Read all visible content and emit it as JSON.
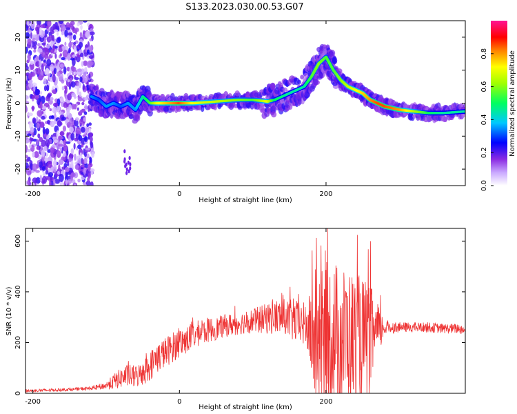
{
  "figure": {
    "title": "S133.2023.030.00.53.G07"
  },
  "chart_data": [
    {
      "type": "heatmap",
      "title": "S133.2023.030.00.53.G07",
      "xlabel": "Height of straight line (km)",
      "ylabel": "Frequency (Hz)",
      "xlim": [
        -210,
        390
      ],
      "ylim": [
        -25,
        25
      ],
      "x_ticks": [
        -200,
        0,
        200
      ],
      "y_ticks": [
        20,
        10,
        0,
        -10,
        -20
      ],
      "colorbar": {
        "label": "Normalized spectral amplitude",
        "range": [
          0,
          1
        ],
        "ticks": [
          0.0,
          0.2,
          0.4,
          0.6,
          0.8
        ],
        "colormap": [
          "#e8d8ff",
          "#8a2be2",
          "#0000ff",
          "#00ffff",
          "#00ff00",
          "#ffff00",
          "#ff8000",
          "#ff0000",
          "#ff00a0"
        ]
      },
      "ridge": {
        "x": [
          -120,
          -110,
          -100,
          -90,
          -80,
          -70,
          -60,
          -50,
          -40,
          -30,
          -20,
          0,
          20,
          50,
          80,
          100,
          120,
          130,
          150,
          170,
          180,
          190,
          200,
          210,
          220,
          230,
          240,
          250,
          260,
          270,
          280,
          300,
          320,
          340,
          360,
          390
        ],
        "y": [
          2,
          1,
          -1,
          0,
          -1,
          0,
          -2,
          2,
          0,
          0,
          0,
          0,
          0,
          0.5,
          1,
          1,
          0.5,
          1,
          3,
          5,
          8,
          12,
          14,
          10,
          7,
          5,
          4,
          3,
          1,
          0,
          -1,
          -2,
          -2.5,
          -3,
          -3,
          -2.5
        ],
        "amplitude": [
          0.35,
          0.3,
          0.35,
          0.35,
          0.3,
          0.35,
          0.35,
          0.45,
          0.55,
          0.7,
          0.75,
          0.85,
          0.7,
          0.65,
          0.6,
          0.55,
          0.7,
          0.5,
          0.45,
          0.45,
          0.55,
          0.6,
          0.55,
          0.55,
          0.6,
          0.65,
          0.7,
          0.75,
          0.8,
          0.85,
          0.85,
          0.8,
          0.65,
          0.5,
          0.45,
          0.45
        ]
      },
      "noise_region_x": [
        -210,
        -118
      ]
    },
    {
      "type": "line",
      "xlabel": "Height of straight line (km)",
      "ylabel": "SNR (10 * v/v)",
      "xlim": [
        -210,
        390
      ],
      "ylim": [
        0,
        650
      ],
      "x_ticks": [
        -200,
        0,
        200
      ],
      "y_ticks": [
        0,
        200,
        400,
        600
      ],
      "series": [
        {
          "color": "#ee3333",
          "x": [
            -210,
            -180,
            -150,
            -120,
            -100,
            -90,
            -80,
            -70,
            -60,
            -50,
            -40,
            -30,
            -20,
            -10,
            0,
            10,
            20,
            30,
            40,
            50,
            60,
            70,
            80,
            90,
            100,
            110,
            120,
            130,
            140,
            150,
            160,
            170,
            175,
            180,
            185,
            190,
            200,
            210,
            220,
            230,
            240,
            250,
            260,
            270,
            280,
            300,
            320,
            340,
            360,
            380,
            390
          ],
          "y": [
            10,
            12,
            15,
            20,
            30,
            45,
            60,
            70,
            65,
            80,
            110,
            140,
            160,
            180,
            200,
            210,
            230,
            240,
            250,
            255,
            265,
            270,
            275,
            280,
            285,
            290,
            295,
            300,
            300,
            290,
            280,
            270,
            260,
            230,
            210,
            200,
            220,
            230,
            220,
            215,
            210,
            205,
            215,
            240,
            260,
            260,
            260,
            260,
            255,
            255,
            250
          ],
          "spread": [
            6,
            6,
            6,
            8,
            15,
            30,
            40,
            45,
            45,
            50,
            60,
            60,
            60,
            60,
            60,
            55,
            55,
            50,
            50,
            45,
            45,
            45,
            45,
            45,
            50,
            55,
            60,
            70,
            75,
            80,
            85,
            90,
            100,
            200,
            250,
            260,
            300,
            300,
            290,
            280,
            270,
            250,
            220,
            120,
            30,
            20,
            20,
            20,
            20,
            20,
            20
          ]
        }
      ]
    }
  ]
}
